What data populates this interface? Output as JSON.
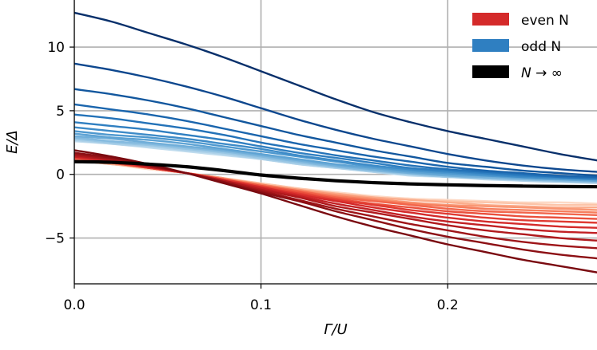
{
  "chart_data": {
    "type": "line",
    "title": "",
    "xlabel": "Γ/U",
    "ylabel": "E/Δ",
    "xlim": [
      0.0,
      0.28
    ],
    "ylim": [
      -8.6,
      13.7
    ],
    "grid": true,
    "x_ticks": [
      0.0,
      0.1,
      0.2
    ],
    "x_tick_labels": [
      "0.0",
      "0.1",
      "0.2"
    ],
    "y_ticks": [
      -5,
      0,
      5,
      10
    ],
    "y_tick_labels": [
      "−5",
      "0",
      "5",
      "10"
    ],
    "legend": {
      "position": "top-right",
      "entries": [
        {
          "label": "even N",
          "color": "#d42a2a"
        },
        {
          "label": "odd N",
          "color": "#2f7fc1"
        },
        {
          "label": "N → ∞",
          "color": "#000000",
          "italic_symbol": "N",
          "suffix": " → ∞"
        }
      ]
    },
    "x": [
      0.0,
      0.02,
      0.04,
      0.06,
      0.08,
      0.1,
      0.12,
      0.14,
      0.16,
      0.18,
      0.2,
      0.22,
      0.24,
      0.26,
      0.28
    ],
    "series": [
      {
        "name": "odd 1",
        "group": "odd",
        "color": "#08306b",
        "values": [
          12.7,
          12.0,
          11.1,
          10.2,
          9.2,
          8.1,
          7.0,
          5.9,
          4.9,
          4.1,
          3.4,
          2.8,
          2.2,
          1.6,
          1.1
        ]
      },
      {
        "name": "odd 2",
        "group": "odd",
        "color": "#0d478e",
        "values": [
          8.7,
          8.2,
          7.6,
          6.9,
          6.1,
          5.2,
          4.3,
          3.5,
          2.8,
          2.2,
          1.6,
          1.1,
          0.7,
          0.4,
          0.2
        ]
      },
      {
        "name": "odd 3",
        "group": "odd",
        "color": "#12579e",
        "values": [
          6.7,
          6.3,
          5.8,
          5.2,
          4.5,
          3.8,
          3.1,
          2.5,
          1.9,
          1.4,
          0.9,
          0.6,
          0.3,
          0.1,
          -0.1
        ]
      },
      {
        "name": "odd 4",
        "group": "odd",
        "color": "#1a65ad",
        "values": [
          5.5,
          5.1,
          4.7,
          4.2,
          3.6,
          3.0,
          2.4,
          1.9,
          1.4,
          1.0,
          0.6,
          0.3,
          0.1,
          -0.1,
          -0.2
        ]
      },
      {
        "name": "odd 5",
        "group": "odd",
        "color": "#2372b8",
        "values": [
          4.7,
          4.4,
          4.0,
          3.6,
          3.1,
          2.5,
          2.0,
          1.5,
          1.1,
          0.7,
          0.4,
          0.2,
          0.0,
          -0.2,
          -0.3
        ]
      },
      {
        "name": "odd 6",
        "group": "odd",
        "color": "#2f7fc1",
        "values": [
          4.1,
          3.8,
          3.5,
          3.1,
          2.7,
          2.2,
          1.7,
          1.3,
          0.9,
          0.5,
          0.3,
          0.1,
          -0.1,
          -0.2,
          -0.3
        ]
      },
      {
        "name": "odd 7",
        "group": "odd",
        "color": "#3d8bc8",
        "values": [
          3.7,
          3.4,
          3.1,
          2.8,
          2.4,
          2.0,
          1.5,
          1.1,
          0.7,
          0.4,
          0.2,
          0.0,
          -0.2,
          -0.3,
          -0.4
        ]
      },
      {
        "name": "odd 8",
        "group": "odd",
        "color": "#4d98cf",
        "values": [
          3.4,
          3.1,
          2.9,
          2.6,
          2.2,
          1.8,
          1.4,
          1.0,
          0.6,
          0.3,
          0.1,
          -0.1,
          -0.2,
          -0.3,
          -0.4
        ]
      },
      {
        "name": "odd 9",
        "group": "odd",
        "color": "#5ea3d4",
        "values": [
          3.2,
          2.9,
          2.7,
          2.4,
          2.0,
          1.6,
          1.2,
          0.8,
          0.5,
          0.2,
          0.0,
          -0.1,
          -0.3,
          -0.4,
          -0.5
        ]
      },
      {
        "name": "odd 10",
        "group": "odd",
        "color": "#70aed9",
        "values": [
          3.0,
          2.8,
          2.5,
          2.2,
          1.9,
          1.5,
          1.1,
          0.7,
          0.4,
          0.1,
          -0.1,
          -0.2,
          -0.3,
          -0.4,
          -0.5
        ]
      },
      {
        "name": "odd 11",
        "group": "odd",
        "color": "#84badf",
        "values": [
          2.9,
          2.6,
          2.4,
          2.1,
          1.8,
          1.4,
          1.0,
          0.6,
          0.3,
          0.1,
          -0.1,
          -0.3,
          -0.4,
          -0.5,
          -0.6
        ]
      },
      {
        "name": "odd 12",
        "group": "odd",
        "color": "#98c6e4",
        "values": [
          2.8,
          2.5,
          2.3,
          2.0,
          1.7,
          1.3,
          0.9,
          0.6,
          0.3,
          0.0,
          -0.2,
          -0.3,
          -0.4,
          -0.5,
          -0.6
        ]
      },
      {
        "name": "odd 13",
        "group": "odd",
        "color": "#add1e9",
        "values": [
          2.7,
          2.4,
          2.2,
          1.9,
          1.6,
          1.2,
          0.8,
          0.5,
          0.2,
          0.0,
          -0.2,
          -0.3,
          -0.5,
          -0.6,
          -0.6
        ]
      },
      {
        "name": "odd 14",
        "group": "odd",
        "color": "#c0dcee",
        "values": [
          2.6,
          2.4,
          2.1,
          1.8,
          1.5,
          1.2,
          0.8,
          0.5,
          0.2,
          -0.1,
          -0.2,
          -0.4,
          -0.5,
          -0.6,
          -0.7
        ]
      },
      {
        "name": "even 1",
        "group": "even",
        "color": "#7a0a10",
        "values": [
          1.9,
          1.4,
          0.8,
          0.1,
          -0.7,
          -1.5,
          -2.4,
          -3.3,
          -4.1,
          -4.8,
          -5.5,
          -6.1,
          -6.7,
          -7.2,
          -7.7
        ]
      },
      {
        "name": "even 2",
        "group": "even",
        "color": "#8c0f14",
        "values": [
          1.7,
          1.3,
          0.7,
          0.1,
          -0.6,
          -1.4,
          -2.1,
          -2.9,
          -3.6,
          -4.3,
          -4.9,
          -5.4,
          -5.9,
          -6.3,
          -6.6
        ]
      },
      {
        "name": "even 3",
        "group": "even",
        "color": "#9e1418",
        "values": [
          1.6,
          1.2,
          0.7,
          0.1,
          -0.6,
          -1.3,
          -2.0,
          -2.7,
          -3.3,
          -3.9,
          -4.4,
          -4.9,
          -5.3,
          -5.6,
          -5.8
        ]
      },
      {
        "name": "even 4",
        "group": "even",
        "color": "#b0191d",
        "values": [
          1.5,
          1.1,
          0.6,
          0.1,
          -0.5,
          -1.2,
          -1.8,
          -2.5,
          -3.0,
          -3.5,
          -4.0,
          -4.4,
          -4.7,
          -5.0,
          -5.2
        ]
      },
      {
        "name": "even 5",
        "group": "even",
        "color": "#c22024",
        "values": [
          1.4,
          1.1,
          0.6,
          0.1,
          -0.5,
          -1.1,
          -1.7,
          -2.3,
          -2.8,
          -3.3,
          -3.7,
          -4.0,
          -4.3,
          -4.5,
          -4.6
        ]
      },
      {
        "name": "even 6",
        "group": "even",
        "color": "#d42a2a",
        "values": [
          1.4,
          1.0,
          0.6,
          0.1,
          -0.5,
          -1.0,
          -1.6,
          -2.1,
          -2.6,
          -3.0,
          -3.4,
          -3.7,
          -3.9,
          -4.1,
          -4.2
        ]
      },
      {
        "name": "even 7",
        "group": "even",
        "color": "#e03a32",
        "values": [
          1.3,
          1.0,
          0.5,
          0.1,
          -0.4,
          -1.0,
          -1.5,
          -2.0,
          -2.4,
          -2.8,
          -3.1,
          -3.4,
          -3.6,
          -3.7,
          -3.8
        ]
      },
      {
        "name": "even 8",
        "group": "even",
        "color": "#ea4f3c",
        "values": [
          1.3,
          0.9,
          0.5,
          0.1,
          -0.4,
          -0.9,
          -1.4,
          -1.9,
          -2.3,
          -2.6,
          -2.9,
          -3.1,
          -3.3,
          -3.4,
          -3.5
        ]
      },
      {
        "name": "even 9",
        "group": "even",
        "color": "#f2654b",
        "values": [
          1.2,
          0.9,
          0.5,
          0.1,
          -0.4,
          -0.9,
          -1.3,
          -1.8,
          -2.1,
          -2.4,
          -2.7,
          -2.9,
          -3.0,
          -3.1,
          -3.2
        ]
      },
      {
        "name": "even 10",
        "group": "even",
        "color": "#f67e5d",
        "values": [
          1.2,
          0.9,
          0.5,
          0.1,
          -0.4,
          -0.8,
          -1.3,
          -1.7,
          -2.0,
          -2.3,
          -2.5,
          -2.7,
          -2.8,
          -2.9,
          -3.0
        ]
      },
      {
        "name": "even 11",
        "group": "even",
        "color": "#f99673",
        "values": [
          1.2,
          0.9,
          0.5,
          0.1,
          -0.3,
          -0.8,
          -1.2,
          -1.6,
          -1.9,
          -2.2,
          -2.4,
          -2.5,
          -2.6,
          -2.7,
          -2.8
        ]
      },
      {
        "name": "even 12",
        "group": "even",
        "color": "#fbad8c",
        "values": [
          1.1,
          0.8,
          0.5,
          0.1,
          -0.3,
          -0.8,
          -1.2,
          -1.5,
          -1.8,
          -2.0,
          -2.2,
          -2.4,
          -2.5,
          -2.6,
          -2.6
        ]
      },
      {
        "name": "even 13",
        "group": "even",
        "color": "#fcc4a8",
        "values": [
          1.1,
          0.8,
          0.5,
          0.1,
          -0.3,
          -0.7,
          -1.1,
          -1.5,
          -1.8,
          -2.0,
          -2.1,
          -2.2,
          -2.3,
          -2.4,
          -2.4
        ]
      },
      {
        "name": "even 14",
        "group": "even",
        "color": "#fdd9c5",
        "values": [
          1.1,
          0.8,
          0.4,
          0.1,
          -0.3,
          -0.7,
          -1.1,
          -1.4,
          -1.7,
          -1.9,
          -2.0,
          -2.1,
          -2.2,
          -2.2,
          -2.3
        ]
      },
      {
        "name": "N → ∞",
        "group": "limit",
        "color": "#000000",
        "values": [
          1.0,
          0.95,
          0.8,
          0.6,
          0.3,
          -0.05,
          -0.3,
          -0.5,
          -0.65,
          -0.75,
          -0.82,
          -0.88,
          -0.92,
          -0.95,
          -0.97
        ]
      }
    ]
  }
}
